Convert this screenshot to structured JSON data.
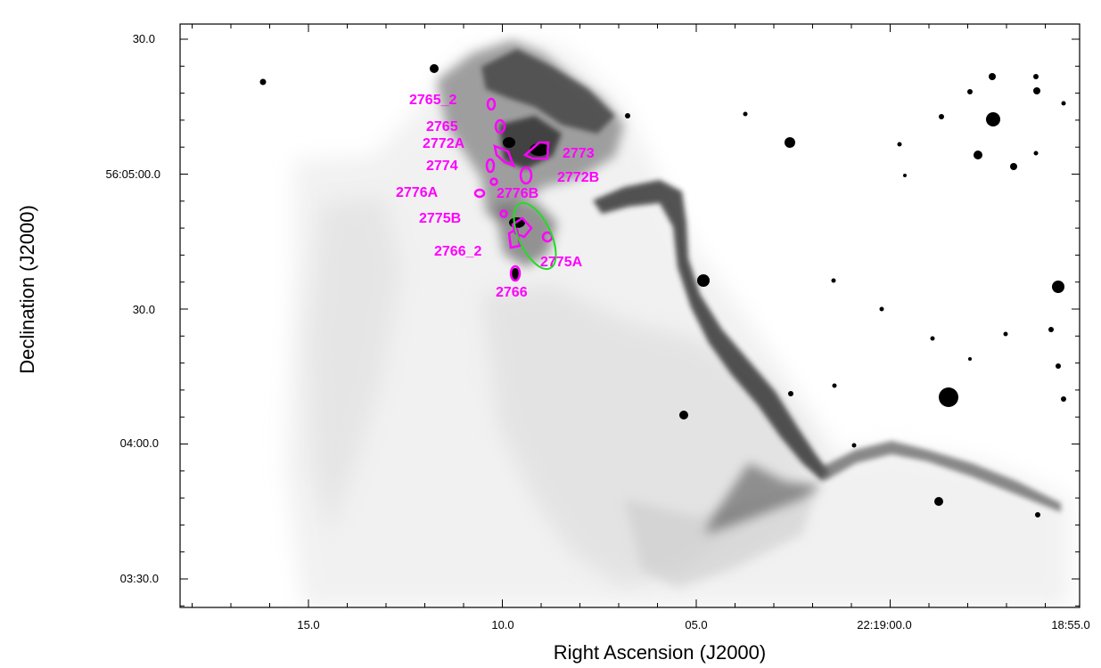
{
  "axes": {
    "x_title": "Right Ascension (J2000)",
    "y_title": "Declination (J2000)",
    "x_ticks": [
      "15.0",
      "10.0",
      "05.0",
      "22:19:00.0",
      "18:55.0"
    ],
    "y_ticks": [
      "30.0",
      "56:05:00.0",
      "30.0",
      "04:00.0",
      "03:30.0"
    ]
  },
  "sources": [
    {
      "name": "2765_2",
      "label": "2765_2"
    },
    {
      "name": "2765",
      "label": "2765"
    },
    {
      "name": "2772A",
      "label": "2772A"
    },
    {
      "name": "2774",
      "label": "2774"
    },
    {
      "name": "2773",
      "label": "2773"
    },
    {
      "name": "2772B",
      "label": "2772B"
    },
    {
      "name": "2776A",
      "label": "2776A"
    },
    {
      "name": "2776B",
      "label": "2776B"
    },
    {
      "name": "2775B",
      "label": "2775B"
    },
    {
      "name": "2766_2",
      "label": "2766_2"
    },
    {
      "name": "2775A",
      "label": "2775A"
    },
    {
      "name": "2766",
      "label": "2766"
    }
  ],
  "colors": {
    "contour": "#ff00ff",
    "ellipse": "#22dd22",
    "frame": "#000000"
  },
  "image": {
    "colormap": "inverted-grayscale"
  }
}
